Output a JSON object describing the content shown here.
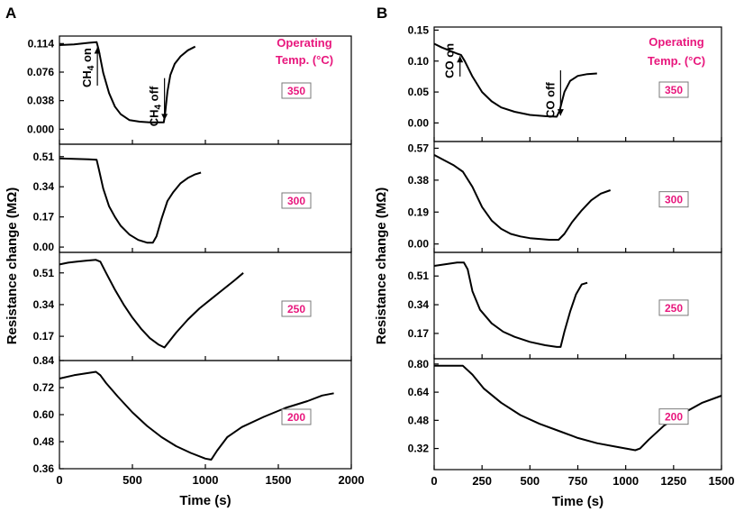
{
  "figure": {
    "colors": {
      "line": "#000000",
      "annotation": "#e8177d",
      "tempbox": "#7a7a7a",
      "background": "#ffffff"
    }
  },
  "chart_data": [
    {
      "id": "A",
      "type": "line",
      "panel_label": "A",
      "xlabel": "Time (s)",
      "ylabel": "Resistance change (MΩ)",
      "xlim": [
        0,
        2000
      ],
      "xticks": [
        "0",
        "500",
        "1000",
        "1500",
        "2000"
      ],
      "xtick_values": [
        0,
        500,
        1000,
        1500,
        2000
      ],
      "header": [
        "Operating",
        "Temp. (°C)"
      ],
      "subplots": [
        {
          "temp": "350",
          "ylim": [
            -0.02,
            0.124
          ],
          "yticks": [
            0.0,
            0.038,
            0.076,
            0.114
          ],
          "ytick_labels": [
            "0.000",
            "0.038",
            "0.076",
            "0.114"
          ],
          "series": [
            [
              0,
              0.112
            ],
            [
              100,
              0.113
            ],
            [
              200,
              0.115
            ],
            [
              255,
              0.116
            ],
            [
              270,
              0.105
            ],
            [
              300,
              0.075
            ],
            [
              340,
              0.048
            ],
            [
              380,
              0.03
            ],
            [
              420,
              0.02
            ],
            [
              480,
              0.012
            ],
            [
              550,
              0.01
            ],
            [
              620,
              0.009
            ],
            [
              690,
              0.009
            ],
            [
              715,
              0.009
            ],
            [
              725,
              0.022
            ],
            [
              740,
              0.05
            ],
            [
              760,
              0.072
            ],
            [
              790,
              0.087
            ],
            [
              830,
              0.097
            ],
            [
              880,
              0.105
            ],
            [
              930,
              0.11
            ]
          ],
          "annotations": [
            {
              "text_parts": [
                "CH",
                "4",
                " on"
              ],
              "x": 260,
              "y_start": 0.058,
              "y_end": 0.109
            },
            {
              "text_parts": [
                "CH",
                "4",
                " off"
              ],
              "x": 720,
              "y_start": 0.068,
              "y_end": 0.012
            }
          ]
        },
        {
          "temp": "300",
          "ylim": [
            -0.03,
            0.58
          ],
          "yticks": [
            0.0,
            0.17,
            0.34,
            0.51
          ],
          "ytick_labels": [
            "0.00",
            "0.17",
            "0.34",
            "0.51"
          ],
          "series": [
            [
              0,
              0.5
            ],
            [
              100,
              0.497
            ],
            [
              200,
              0.495
            ],
            [
              255,
              0.492
            ],
            [
              270,
              0.44
            ],
            [
              300,
              0.33
            ],
            [
              340,
              0.23
            ],
            [
              380,
              0.17
            ],
            [
              420,
              0.12
            ],
            [
              480,
              0.07
            ],
            [
              540,
              0.04
            ],
            [
              600,
              0.025
            ],
            [
              640,
              0.025
            ],
            [
              665,
              0.06
            ],
            [
              700,
              0.16
            ],
            [
              740,
              0.26
            ],
            [
              780,
              0.31
            ],
            [
              830,
              0.36
            ],
            [
              880,
              0.39
            ],
            [
              930,
              0.41
            ],
            [
              970,
              0.42
            ]
          ]
        },
        {
          "temp": "250",
          "ylim": [
            0.04,
            0.62
          ],
          "yticks": [
            0.17,
            0.34,
            0.51
          ],
          "ytick_labels": [
            "0.17",
            "0.34",
            "0.51"
          ],
          "series": [
            [
              0,
              0.555
            ],
            [
              60,
              0.565
            ],
            [
              120,
              0.57
            ],
            [
              180,
              0.575
            ],
            [
              250,
              0.58
            ],
            [
              280,
              0.57
            ],
            [
              320,
              0.51
            ],
            [
              380,
              0.42
            ],
            [
              440,
              0.34
            ],
            [
              500,
              0.27
            ],
            [
              560,
              0.21
            ],
            [
              620,
              0.16
            ],
            [
              680,
              0.125
            ],
            [
              720,
              0.11
            ],
            [
              750,
              0.14
            ],
            [
              800,
              0.19
            ],
            [
              880,
              0.26
            ],
            [
              960,
              0.32
            ],
            [
              1040,
              0.37
            ],
            [
              1120,
              0.42
            ],
            [
              1200,
              0.47
            ],
            [
              1260,
              0.51
            ]
          ]
        },
        {
          "temp": "200",
          "ylim": [
            0.36,
            0.84
          ],
          "yticks": [
            0.36,
            0.48,
            0.6,
            0.72,
            0.84
          ],
          "ytick_labels": [
            "0.36",
            "0.48",
            "0.60",
            "0.72",
            "0.84"
          ],
          "series": [
            [
              0,
              0.76
            ],
            [
              100,
              0.775
            ],
            [
              200,
              0.785
            ],
            [
              250,
              0.79
            ],
            [
              280,
              0.775
            ],
            [
              320,
              0.74
            ],
            [
              400,
              0.68
            ],
            [
              500,
              0.61
            ],
            [
              600,
              0.55
            ],
            [
              700,
              0.5
            ],
            [
              800,
              0.46
            ],
            [
              900,
              0.43
            ],
            [
              1000,
              0.405
            ],
            [
              1040,
              0.4
            ],
            [
              1080,
              0.44
            ],
            [
              1150,
              0.5
            ],
            [
              1250,
              0.545
            ],
            [
              1400,
              0.59
            ],
            [
              1550,
              0.63
            ],
            [
              1700,
              0.66
            ],
            [
              1800,
              0.685
            ],
            [
              1880,
              0.695
            ]
          ]
        }
      ]
    },
    {
      "id": "B",
      "type": "line",
      "panel_label": "B",
      "xlabel": "Time (s)",
      "ylabel": "Resistance change (MΩ)",
      "xlim": [
        0,
        1500
      ],
      "xticks": [
        "0",
        "250",
        "500",
        "750",
        "1000",
        "1250",
        "1500"
      ],
      "xtick_values": [
        0,
        250,
        500,
        750,
        1000,
        1250,
        1500
      ],
      "header": [
        "Operating",
        "Temp. (°C)"
      ],
      "subplots": [
        {
          "temp": "350",
          "ylim": [
            -0.03,
            0.155
          ],
          "yticks": [
            0.0,
            0.05,
            0.1,
            0.15
          ],
          "ytick_labels": [
            "0.00",
            "0.05",
            "0.10",
            "0.15"
          ],
          "series": [
            [
              0,
              0.128
            ],
            [
              40,
              0.122
            ],
            [
              80,
              0.117
            ],
            [
              120,
              0.112
            ],
            [
              140,
              0.11
            ],
            [
              160,
              0.1
            ],
            [
              200,
              0.075
            ],
            [
              250,
              0.05
            ],
            [
              300,
              0.035
            ],
            [
              350,
              0.025
            ],
            [
              420,
              0.018
            ],
            [
              500,
              0.013
            ],
            [
              580,
              0.011
            ],
            [
              640,
              0.01
            ],
            [
              655,
              0.02
            ],
            [
              680,
              0.05
            ],
            [
              710,
              0.068
            ],
            [
              750,
              0.076
            ],
            [
              800,
              0.079
            ],
            [
              850,
              0.08
            ]
          ],
          "annotations": [
            {
              "text_parts": [
                "CO on"
              ],
              "x": 135,
              "y_start": 0.075,
              "y_end": 0.108
            },
            {
              "text_parts": [
                "CO off"
              ],
              "x": 660,
              "y_start": 0.085,
              "y_end": 0.012
            }
          ]
        },
        {
          "temp": "300",
          "ylim": [
            -0.05,
            0.61
          ],
          "yticks": [
            0.0,
            0.19,
            0.38,
            0.57
          ],
          "ytick_labels": [
            "0.00",
            "0.19",
            "0.38",
            "0.57"
          ],
          "series": [
            [
              0,
              0.53
            ],
            [
              50,
              0.5
            ],
            [
              100,
              0.47
            ],
            [
              150,
              0.43
            ],
            [
              200,
              0.34
            ],
            [
              250,
              0.22
            ],
            [
              300,
              0.14
            ],
            [
              350,
              0.09
            ],
            [
              400,
              0.06
            ],
            [
              450,
              0.045
            ],
            [
              500,
              0.035
            ],
            [
              550,
              0.03
            ],
            [
              600,
              0.025
            ],
            [
              650,
              0.025
            ],
            [
              680,
              0.06
            ],
            [
              720,
              0.13
            ],
            [
              770,
              0.2
            ],
            [
              820,
              0.26
            ],
            [
              870,
              0.3
            ],
            [
              920,
              0.32
            ]
          ]
        },
        {
          "temp": "250",
          "ylim": [
            0.02,
            0.65
          ],
          "yticks": [
            0.17,
            0.34,
            0.51
          ],
          "ytick_labels": [
            "0.17",
            "0.34",
            "0.51"
          ],
          "series": [
            [
              0,
              0.57
            ],
            [
              60,
              0.58
            ],
            [
              120,
              0.59
            ],
            [
              155,
              0.59
            ],
            [
              175,
              0.55
            ],
            [
              200,
              0.42
            ],
            [
              240,
              0.31
            ],
            [
              300,
              0.23
            ],
            [
              360,
              0.18
            ],
            [
              420,
              0.15
            ],
            [
              500,
              0.12
            ],
            [
              580,
              0.1
            ],
            [
              640,
              0.09
            ],
            [
              660,
              0.09
            ],
            [
              680,
              0.18
            ],
            [
              710,
              0.3
            ],
            [
              740,
              0.4
            ],
            [
              770,
              0.46
            ],
            [
              800,
              0.47
            ]
          ]
        },
        {
          "temp": "200",
          "ylim": [
            0.2,
            0.83
          ],
          "yticks": [
            0.32,
            0.48,
            0.64,
            0.8
          ],
          "ytick_labels": [
            "0.32",
            "0.48",
            "0.64",
            "0.80"
          ],
          "series": [
            [
              0,
              0.79
            ],
            [
              50,
              0.79
            ],
            [
              100,
              0.79
            ],
            [
              150,
              0.79
            ],
            [
              200,
              0.74
            ],
            [
              260,
              0.66
            ],
            [
              350,
              0.58
            ],
            [
              450,
              0.51
            ],
            [
              550,
              0.46
            ],
            [
              650,
              0.42
            ],
            [
              750,
              0.38
            ],
            [
              850,
              0.35
            ],
            [
              950,
              0.33
            ],
            [
              1050,
              0.31
            ],
            [
              1075,
              0.32
            ],
            [
              1120,
              0.37
            ],
            [
              1200,
              0.45
            ],
            [
              1300,
              0.52
            ],
            [
              1400,
              0.58
            ],
            [
              1500,
              0.62
            ]
          ]
        }
      ]
    }
  ]
}
